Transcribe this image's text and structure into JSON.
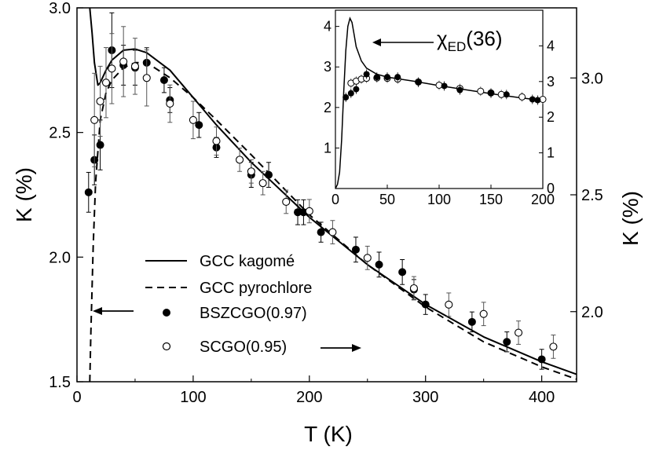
{
  "chart_data": {
    "type": "scatter",
    "xlabel": "T (K)",
    "ylabel_left": "K (%)",
    "ylabel_right": "K (%)",
    "xlim": [
      0,
      430
    ],
    "ylim_left": [
      1.5,
      3.0
    ],
    "ylim_right": [
      1.7,
      3.3
    ],
    "xticks": [
      "0",
      "100",
      "200",
      "300",
      "400"
    ],
    "yticks_left": [
      "1.5",
      "2.0",
      "2.5",
      "3.0"
    ],
    "yticks_right": [
      "2.0",
      "2.5",
      "3.0"
    ],
    "legend": {
      "kagome": "GCC kagomé",
      "pyrochlore": "GCC pyrochlore",
      "bszcgo": "BSZCGO(0.97)",
      "scgo": "SCGO(0.95)"
    },
    "series": [
      {
        "name": "BSZCGO(0.97)",
        "marker": "filled-circle",
        "axis": "left",
        "points": [
          {
            "x": 10,
            "y": 2.26,
            "err": 0.08
          },
          {
            "x": 15,
            "y": 2.39,
            "err": 0.1
          },
          {
            "x": 20,
            "y": 2.45,
            "err": 0.1
          },
          {
            "x": 30,
            "y": 2.83,
            "err": 0.15
          },
          {
            "x": 40,
            "y": 2.77,
            "err": 0.08
          },
          {
            "x": 50,
            "y": 2.76,
            "err": 0.07
          },
          {
            "x": 60,
            "y": 2.78,
            "err": 0.06
          },
          {
            "x": 75,
            "y": 2.71,
            "err": 0.05
          },
          {
            "x": 80,
            "y": 2.63,
            "err": 0.05
          },
          {
            "x": 105,
            "y": 2.53,
            "err": 0.05
          },
          {
            "x": 120,
            "y": 2.44,
            "err": 0.04
          },
          {
            "x": 150,
            "y": 2.33,
            "err": 0.05
          },
          {
            "x": 165,
            "y": 2.33,
            "err": 0.05
          },
          {
            "x": 190,
            "y": 2.18,
            "err": 0.05
          },
          {
            "x": 195,
            "y": 2.18,
            "err": 0.05
          },
          {
            "x": 210,
            "y": 2.1,
            "err": 0.04
          },
          {
            "x": 240,
            "y": 2.03,
            "err": 0.05
          },
          {
            "x": 260,
            "y": 1.97,
            "err": 0.05
          },
          {
            "x": 280,
            "y": 1.94,
            "err": 0.05
          },
          {
            "x": 290,
            "y": 1.87,
            "err": 0.04
          },
          {
            "x": 300,
            "y": 1.81,
            "err": 0.04
          },
          {
            "x": 340,
            "y": 1.74,
            "err": 0.04
          },
          {
            "x": 370,
            "y": 1.66,
            "err": 0.04
          },
          {
            "x": 400,
            "y": 1.59,
            "err": 0.04
          }
        ]
      },
      {
        "name": "SCGO(0.95)",
        "marker": "open-circle",
        "axis": "right",
        "points": [
          {
            "x": 15,
            "y": 2.82,
            "err": 0.2
          },
          {
            "x": 20,
            "y": 2.9,
            "err": 0.15
          },
          {
            "x": 25,
            "y": 2.98,
            "err": 0.15
          },
          {
            "x": 30,
            "y": 3.04,
            "err": 0.15
          },
          {
            "x": 40,
            "y": 3.07,
            "err": 0.15
          },
          {
            "x": 50,
            "y": 3.05,
            "err": 0.12
          },
          {
            "x": 60,
            "y": 3.0,
            "err": 0.12
          },
          {
            "x": 80,
            "y": 2.89,
            "err": 0.08
          },
          {
            "x": 100,
            "y": 2.82,
            "err": 0.08
          },
          {
            "x": 120,
            "y": 2.73,
            "err": 0.06
          },
          {
            "x": 140,
            "y": 2.65,
            "err": 0.05
          },
          {
            "x": 150,
            "y": 2.6,
            "err": 0.05
          },
          {
            "x": 160,
            "y": 2.55,
            "err": 0.05
          },
          {
            "x": 180,
            "y": 2.47,
            "err": 0.05
          },
          {
            "x": 200,
            "y": 2.43,
            "err": 0.05
          },
          {
            "x": 220,
            "y": 2.34,
            "err": 0.05
          },
          {
            "x": 250,
            "y": 2.23,
            "err": 0.05
          },
          {
            "x": 290,
            "y": 2.1,
            "err": 0.05
          },
          {
            "x": 320,
            "y": 2.03,
            "err": 0.05
          },
          {
            "x": 350,
            "y": 1.99,
            "err": 0.05
          },
          {
            "x": 380,
            "y": 1.91,
            "err": 0.05
          },
          {
            "x": 410,
            "y": 1.85,
            "err": 0.05
          }
        ]
      }
    ],
    "curves": [
      {
        "name": "GCC kagomé",
        "style": "solid",
        "points": [
          [
            11,
            3.0
          ],
          [
            13,
            2.9
          ],
          [
            15,
            2.78
          ],
          [
            18,
            2.69
          ],
          [
            20,
            2.7
          ],
          [
            25,
            2.75
          ],
          [
            30,
            2.79
          ],
          [
            40,
            2.83
          ],
          [
            50,
            2.835
          ],
          [
            60,
            2.82
          ],
          [
            80,
            2.75
          ],
          [
            100,
            2.64
          ],
          [
            120,
            2.53
          ],
          [
            150,
            2.38
          ],
          [
            200,
            2.16
          ],
          [
            250,
            1.97
          ],
          [
            300,
            1.81
          ],
          [
            350,
            1.68
          ],
          [
            400,
            1.58
          ],
          [
            430,
            1.53
          ]
        ]
      },
      {
        "name": "GCC pyrochlore",
        "style": "dashed",
        "points": [
          [
            11,
            1.5
          ],
          [
            12,
            1.7
          ],
          [
            14,
            2.05
          ],
          [
            16,
            2.3
          ],
          [
            20,
            2.55
          ],
          [
            25,
            2.66
          ],
          [
            30,
            2.71
          ],
          [
            40,
            2.76
          ],
          [
            50,
            2.78
          ],
          [
            60,
            2.78
          ],
          [
            80,
            2.72
          ],
          [
            100,
            2.64
          ],
          [
            120,
            2.55
          ],
          [
            150,
            2.41
          ],
          [
            200,
            2.17
          ],
          [
            250,
            1.97
          ],
          [
            300,
            1.8
          ],
          [
            350,
            1.66
          ],
          [
            400,
            1.56
          ],
          [
            430,
            1.51
          ]
        ]
      }
    ],
    "inset": {
      "annotation": "χED(36)",
      "annotation_main": "χ",
      "annotation_sub": "ED",
      "annotation_tail": "(36)",
      "xlim": [
        0,
        200
      ],
      "ylim_left": [
        0,
        4.4
      ],
      "ylim_right": [
        0,
        5.0
      ],
      "xticks": [
        "0",
        "50",
        "100",
        "150",
        "200"
      ],
      "yticks_left": [
        "1",
        "2",
        "3",
        "4"
      ],
      "yticks_right": [
        "0",
        "1",
        "2",
        "3",
        "4"
      ],
      "curve": [
        [
          0,
          0.0
        ],
        [
          2,
          0.1
        ],
        [
          4,
          0.4
        ],
        [
          6,
          1.2
        ],
        [
          8,
          2.4
        ],
        [
          10,
          3.4
        ],
        [
          12,
          4.0
        ],
        [
          14,
          4.2
        ],
        [
          16,
          4.1
        ],
        [
          18,
          3.8
        ],
        [
          20,
          3.5
        ],
        [
          25,
          3.15
        ],
        [
          30,
          2.97
        ],
        [
          40,
          2.82
        ],
        [
          50,
          2.75
        ],
        [
          75,
          2.65
        ],
        [
          100,
          2.54
        ],
        [
          125,
          2.44
        ],
        [
          150,
          2.34
        ],
        [
          175,
          2.25
        ],
        [
          200,
          2.17
        ]
      ],
      "bszcgo": [
        [
          10,
          2.25
        ],
        [
          15,
          2.35
        ],
        [
          20,
          2.45
        ],
        [
          30,
          2.82
        ],
        [
          40,
          2.75
        ],
        [
          50,
          2.75
        ],
        [
          60,
          2.75
        ],
        [
          80,
          2.62
        ],
        [
          105,
          2.53
        ],
        [
          120,
          2.43
        ],
        [
          150,
          2.35
        ],
        [
          165,
          2.32
        ],
        [
          190,
          2.2
        ],
        [
          195,
          2.18
        ]
      ],
      "scgo": [
        [
          15,
          2.6
        ],
        [
          20,
          2.65
        ],
        [
          25,
          2.7
        ],
        [
          30,
          2.72
        ],
        [
          40,
          2.73
        ],
        [
          50,
          2.72
        ],
        [
          60,
          2.7
        ],
        [
          80,
          2.63
        ],
        [
          100,
          2.55
        ],
        [
          120,
          2.47
        ],
        [
          140,
          2.4
        ],
        [
          150,
          2.36
        ],
        [
          160,
          2.32
        ],
        [
          180,
          2.26
        ],
        [
          200,
          2.2
        ]
      ]
    }
  }
}
